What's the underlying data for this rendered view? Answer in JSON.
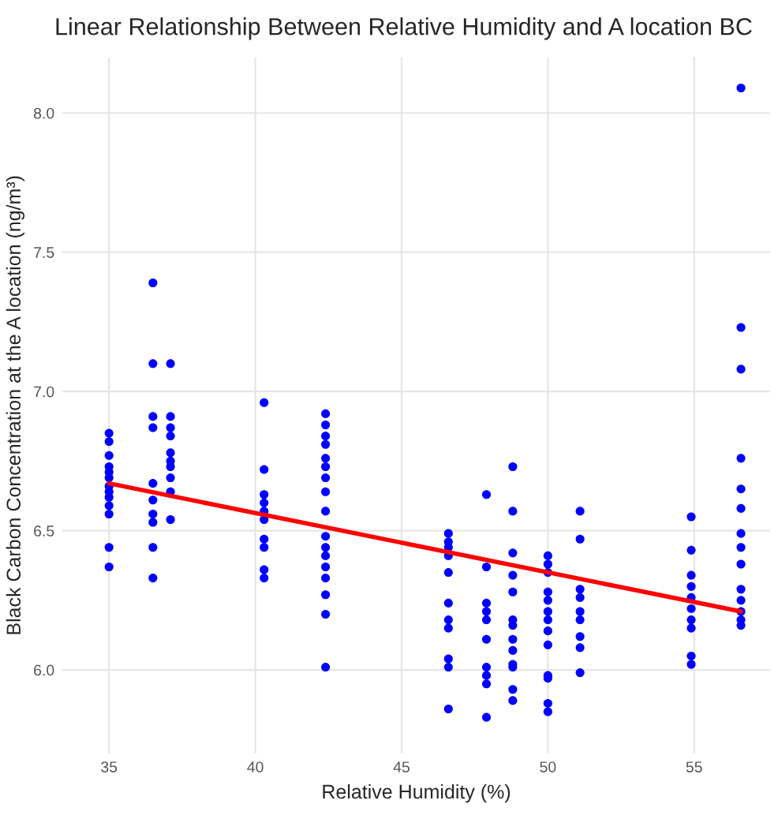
{
  "chart_data": {
    "type": "scatter",
    "title": "Linear Relationship Between Relative Humidity and A location BC",
    "xlabel": "Relative Humidity (%)",
    "ylabel": "Black Carbon Concentration at the A location (ng/m³)",
    "xlim": [
      33.4,
      57.6
    ],
    "ylim": [
      5.7,
      8.2
    ],
    "xticks": [
      35,
      40,
      45,
      50,
      55
    ],
    "yticks": [
      {
        "value": 6,
        "label": "6.0"
      },
      6.5,
      {
        "value": 7,
        "label": "7.0"
      },
      7.5,
      {
        "value": 8,
        "label": "8.0"
      }
    ],
    "grid": true,
    "marker": "circle",
    "series": [
      {
        "color": "#0000ff",
        "x": [
          35,
          35,
          35,
          35,
          35,
          35,
          35,
          35,
          35,
          35,
          35,
          35,
          35,
          36.5,
          36.5,
          36.5,
          36.5,
          36.5,
          36.5,
          36.5,
          36.5,
          36.5,
          36.5,
          37.1,
          37.1,
          37.1,
          37.1,
          37.1,
          37.1,
          37.1,
          37.1,
          37.1,
          37.1,
          40.3,
          40.3,
          40.3,
          40.3,
          40.3,
          40.3,
          40.3,
          40.3,
          40.3,
          40.3,
          42.4,
          42.4,
          42.4,
          42.4,
          42.4,
          42.4,
          42.4,
          42.4,
          42.4,
          42.4,
          42.4,
          42.4,
          42.4,
          42.4,
          42.4,
          42.4,
          42.4,
          46.6,
          46.6,
          46.6,
          46.6,
          46.6,
          46.6,
          46.6,
          46.6,
          46.6,
          46.6,
          46.6,
          47.9,
          47.9,
          47.9,
          47.9,
          47.9,
          47.9,
          47.9,
          47.9,
          47.9,
          47.9,
          48.8,
          48.8,
          48.8,
          48.8,
          48.8,
          48.8,
          48.8,
          48.8,
          48.8,
          48.8,
          48.8,
          48.8,
          48.8,
          50,
          50,
          50,
          50,
          50,
          50,
          50,
          50,
          50,
          50,
          50,
          50,
          50,
          51.1,
          51.1,
          51.1,
          51.1,
          51.1,
          51.1,
          51.1,
          51.1,
          51.1,
          54.9,
          54.9,
          54.9,
          54.9,
          54.9,
          54.9,
          54.9,
          54.9,
          54.9,
          54.9,
          56.6,
          56.6,
          56.6,
          56.6,
          56.6,
          56.6,
          56.6,
          56.6,
          56.6,
          56.6,
          56.6,
          56.6,
          56.6,
          56.6
        ],
        "values": [
          6.85,
          6.82,
          6.77,
          6.73,
          6.71,
          6.69,
          6.66,
          6.64,
          6.62,
          6.59,
          6.56,
          6.44,
          6.37,
          7.39,
          7.1,
          6.91,
          6.87,
          6.67,
          6.61,
          6.56,
          6.53,
          6.44,
          6.33,
          7.1,
          6.91,
          6.87,
          6.84,
          6.78,
          6.75,
          6.73,
          6.69,
          6.64,
          6.54,
          6.96,
          6.72,
          6.63,
          6.6,
          6.57,
          6.54,
          6.47,
          6.44,
          6.36,
          6.33,
          6.92,
          6.88,
          6.84,
          6.81,
          6.76,
          6.73,
          6.69,
          6.64,
          6.57,
          6.48,
          6.44,
          6.41,
          6.37,
          6.33,
          6.27,
          6.2,
          6.01,
          6.49,
          6.46,
          6.44,
          6.41,
          6.35,
          6.24,
          6.18,
          6.15,
          6.04,
          6.01,
          5.86,
          6.63,
          6.37,
          6.24,
          6.21,
          6.18,
          6.11,
          6.01,
          5.98,
          5.95,
          5.83,
          6.73,
          6.57,
          6.42,
          6.34,
          6.28,
          6.18,
          6.16,
          6.11,
          6.07,
          6.02,
          6.01,
          5.93,
          5.89,
          6.41,
          6.38,
          6.35,
          6.28,
          6.25,
          6.21,
          6.18,
          6.14,
          6.09,
          5.98,
          5.97,
          5.88,
          5.85,
          6.57,
          6.47,
          6.29,
          6.26,
          6.21,
          6.18,
          6.12,
          6.08,
          5.99,
          6.55,
          6.43,
          6.34,
          6.3,
          6.26,
          6.22,
          6.18,
          6.15,
          6.05,
          6.02,
          8.09,
          7.23,
          7.08,
          6.76,
          6.65,
          6.58,
          6.49,
          6.44,
          6.38,
          6.29,
          6.25,
          6.21,
          6.18,
          6.16
        ]
      },
      {
        "type": "line",
        "color": "#ff0000",
        "marker": "none",
        "line_style": "solid",
        "x": [
          35,
          56.6
        ],
        "values": [
          6.67,
          6.21
        ]
      }
    ]
  }
}
